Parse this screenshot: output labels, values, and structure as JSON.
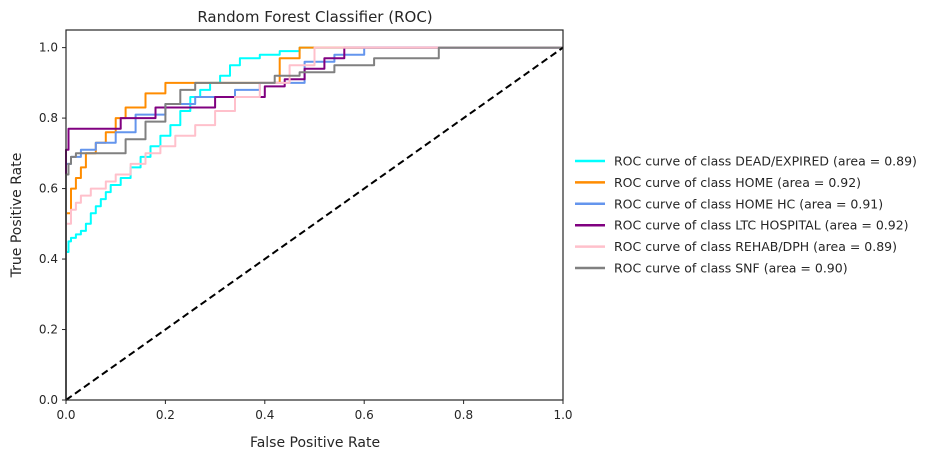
{
  "chart_data": {
    "type": "line",
    "title": "Random Forest Classifier (ROC)",
    "xlabel": "False Positive Rate",
    "ylabel": "True Positive Rate",
    "xlim": [
      0.0,
      1.0
    ],
    "ylim": [
      0.0,
      1.05
    ],
    "xticks": [
      "0.0",
      "0.2",
      "0.4",
      "0.6",
      "0.8",
      "1.0"
    ],
    "yticks": [
      "0.0",
      "0.2",
      "0.4",
      "0.6",
      "0.8",
      "1.0"
    ],
    "grid": false,
    "legend_position": "outside-right",
    "series": [
      {
        "name": "ROC curve of class DEAD/EXPIRED (area = 0.89)",
        "color": "#00ffff",
        "x": [
          0.0,
          0.0,
          0.005,
          0.005,
          0.01,
          0.01,
          0.02,
          0.02,
          0.03,
          0.03,
          0.04,
          0.04,
          0.05,
          0.05,
          0.06,
          0.06,
          0.07,
          0.07,
          0.08,
          0.08,
          0.09,
          0.09,
          0.11,
          0.11,
          0.13,
          0.13,
          0.15,
          0.15,
          0.17,
          0.17,
          0.19,
          0.19,
          0.21,
          0.21,
          0.23,
          0.23,
          0.25,
          0.25,
          0.27,
          0.27,
          0.29,
          0.29,
          0.31,
          0.31,
          0.33,
          0.33,
          0.35,
          0.35,
          0.39,
          0.39,
          0.43,
          0.43,
          0.47,
          0.47,
          0.5,
          0.5,
          1.0
        ],
        "y": [
          0.0,
          0.42,
          0.42,
          0.45,
          0.45,
          0.46,
          0.46,
          0.47,
          0.47,
          0.48,
          0.48,
          0.5,
          0.5,
          0.53,
          0.53,
          0.55,
          0.55,
          0.57,
          0.57,
          0.59,
          0.59,
          0.61,
          0.61,
          0.63,
          0.63,
          0.66,
          0.66,
          0.69,
          0.69,
          0.72,
          0.72,
          0.75,
          0.75,
          0.78,
          0.78,
          0.82,
          0.82,
          0.86,
          0.86,
          0.88,
          0.88,
          0.9,
          0.9,
          0.92,
          0.92,
          0.95,
          0.95,
          0.97,
          0.97,
          0.98,
          0.98,
          0.99,
          0.99,
          1.0,
          1.0,
          1.0,
          1.0
        ]
      },
      {
        "name": "ROC curve of class HOME (area = 0.92)",
        "color": "#ff8c00",
        "x": [
          0.0,
          0.0,
          0.01,
          0.01,
          0.02,
          0.02,
          0.03,
          0.03,
          0.04,
          0.04,
          0.06,
          0.06,
          0.08,
          0.08,
          0.1,
          0.1,
          0.12,
          0.12,
          0.16,
          0.16,
          0.2,
          0.2,
          0.43,
          0.43,
          0.47,
          0.47,
          1.0
        ],
        "y": [
          0.0,
          0.53,
          0.53,
          0.6,
          0.6,
          0.63,
          0.63,
          0.66,
          0.66,
          0.7,
          0.7,
          0.73,
          0.73,
          0.76,
          0.76,
          0.8,
          0.8,
          0.83,
          0.83,
          0.87,
          0.87,
          0.9,
          0.9,
          0.97,
          0.97,
          1.0,
          1.0
        ]
      },
      {
        "name": "ROC curve of class HOME HC (area = 0.91)",
        "color": "#6495ed",
        "x": [
          0.0,
          0.0,
          0.01,
          0.01,
          0.03,
          0.03,
          0.06,
          0.06,
          0.1,
          0.1,
          0.14,
          0.14,
          0.2,
          0.2,
          0.26,
          0.26,
          0.34,
          0.34,
          0.39,
          0.39,
          0.48,
          0.48,
          0.54,
          0.54,
          0.6,
          0.6,
          1.0
        ],
        "y": [
          0.0,
          0.67,
          0.67,
          0.69,
          0.69,
          0.71,
          0.71,
          0.73,
          0.73,
          0.76,
          0.76,
          0.81,
          0.81,
          0.84,
          0.84,
          0.86,
          0.86,
          0.88,
          0.88,
          0.9,
          0.9,
          0.96,
          0.96,
          0.98,
          0.98,
          1.0,
          1.0
        ]
      },
      {
        "name": "ROC curve of class LTC HOSPITAL (area = 0.92)",
        "color": "#800080",
        "x": [
          0.0,
          0.0,
          0.005,
          0.005,
          0.11,
          0.11,
          0.18,
          0.18,
          0.3,
          0.3,
          0.4,
          0.4,
          0.44,
          0.44,
          0.48,
          0.48,
          0.52,
          0.52,
          0.56,
          0.56,
          1.0
        ],
        "y": [
          0.0,
          0.71,
          0.71,
          0.77,
          0.77,
          0.8,
          0.8,
          0.83,
          0.83,
          0.86,
          0.86,
          0.89,
          0.89,
          0.91,
          0.91,
          0.94,
          0.94,
          0.97,
          0.97,
          1.0,
          1.0
        ]
      },
      {
        "name": "ROC curve of class REHAB/DPH (area = 0.89)",
        "color": "#ffc0cb",
        "x": [
          0.0,
          0.0,
          0.01,
          0.01,
          0.02,
          0.02,
          0.03,
          0.03,
          0.05,
          0.05,
          0.08,
          0.08,
          0.1,
          0.1,
          0.13,
          0.13,
          0.16,
          0.16,
          0.19,
          0.19,
          0.22,
          0.22,
          0.26,
          0.26,
          0.3,
          0.3,
          0.34,
          0.34,
          0.39,
          0.39,
          0.45,
          0.45,
          0.5,
          0.5,
          1.0
        ],
        "y": [
          0.0,
          0.5,
          0.5,
          0.54,
          0.54,
          0.56,
          0.56,
          0.58,
          0.58,
          0.6,
          0.6,
          0.62,
          0.62,
          0.64,
          0.64,
          0.67,
          0.67,
          0.7,
          0.7,
          0.72,
          0.72,
          0.75,
          0.75,
          0.78,
          0.78,
          0.82,
          0.82,
          0.86,
          0.86,
          0.9,
          0.9,
          0.95,
          0.95,
          1.0,
          1.0
        ]
      },
      {
        "name": "ROC curve of class SNF (area = 0.90)",
        "color": "#808080",
        "x": [
          0.0,
          0.0,
          0.005,
          0.005,
          0.01,
          0.01,
          0.02,
          0.02,
          0.12,
          0.12,
          0.16,
          0.16,
          0.2,
          0.2,
          0.23,
          0.23,
          0.26,
          0.26,
          0.42,
          0.42,
          0.47,
          0.47,
          0.54,
          0.54,
          0.62,
          0.62,
          0.75,
          0.75,
          1.0
        ],
        "y": [
          0.0,
          0.64,
          0.64,
          0.67,
          0.67,
          0.69,
          0.69,
          0.7,
          0.7,
          0.74,
          0.74,
          0.79,
          0.79,
          0.84,
          0.84,
          0.88,
          0.88,
          0.9,
          0.9,
          0.92,
          0.92,
          0.93,
          0.93,
          0.95,
          0.95,
          0.97,
          0.97,
          1.0,
          1.0
        ]
      },
      {
        "name": "",
        "color": "#000000",
        "dashed": true,
        "x": [
          0.0,
          1.0
        ],
        "y": [
          0.0,
          1.0
        ]
      }
    ]
  }
}
